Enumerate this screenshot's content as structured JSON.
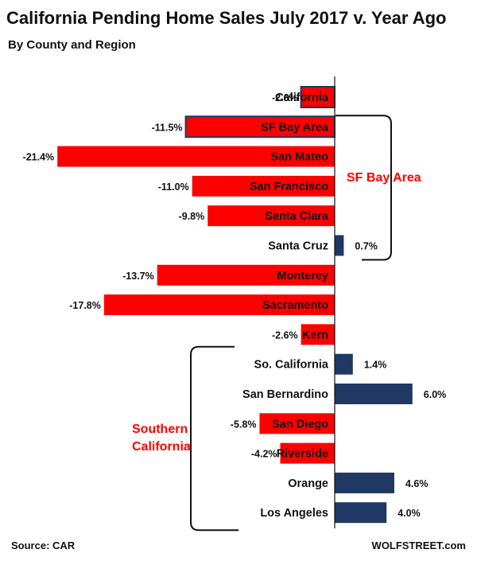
{
  "chart_data": {
    "type": "bar",
    "orientation": "horizontal",
    "title": "California Pending Home Sales July 2017 v. Year Ago",
    "subtitle": "By County and Region",
    "value_suffix": "%",
    "categories": [
      "California",
      "SF Bay Area",
      "San Mateo",
      "San Francisco",
      "Santa Clara",
      "Santa Cruz",
      "Monterey",
      "Sacramento",
      "Kern",
      "So. California",
      "San Bernardino",
      "San Diego",
      "Riverside",
      "Orange",
      "Los Angeles"
    ],
    "values": [
      -2.6,
      -11.5,
      -21.4,
      -11.0,
      -9.8,
      0.7,
      -13.7,
      -17.8,
      -2.6,
      1.4,
      6.0,
      -5.8,
      -4.2,
      4.6,
      4.0
    ],
    "value_labels": [
      "-2.6%",
      "-11.5%",
      "-21.4%",
      "-11.0%",
      "-9.8%",
      "0.7%",
      "-13.7%",
      "-17.8%",
      "-2.6%",
      "1.4%",
      "6.0%",
      "-5.8%",
      "-4.2%",
      "4.6%",
      "4.0%"
    ],
    "colors": {
      "negative": "#ff0000",
      "positive": "#1f3864",
      "highlight_border": "#1f3864",
      "group_label": "#ff0000"
    },
    "highlighted_categories": [
      "California",
      "SF Bay Area"
    ],
    "groups": [
      {
        "label": "SF Bay Area",
        "categories": [
          "SF Bay Area",
          "San Mateo",
          "San Francisco",
          "Santa Clara",
          "Santa Cruz"
        ],
        "side": "right"
      },
      {
        "label_lines": [
          "Southern",
          "California"
        ],
        "categories": [
          "So. California",
          "San Bernardino",
          "San Diego",
          "Riverside",
          "Orange",
          "Los Angeles"
        ],
        "side": "left"
      }
    ],
    "grid": false,
    "legend": "none"
  },
  "footer": {
    "source": "Source: CAR",
    "brand": "WOLFSTREET.com"
  }
}
